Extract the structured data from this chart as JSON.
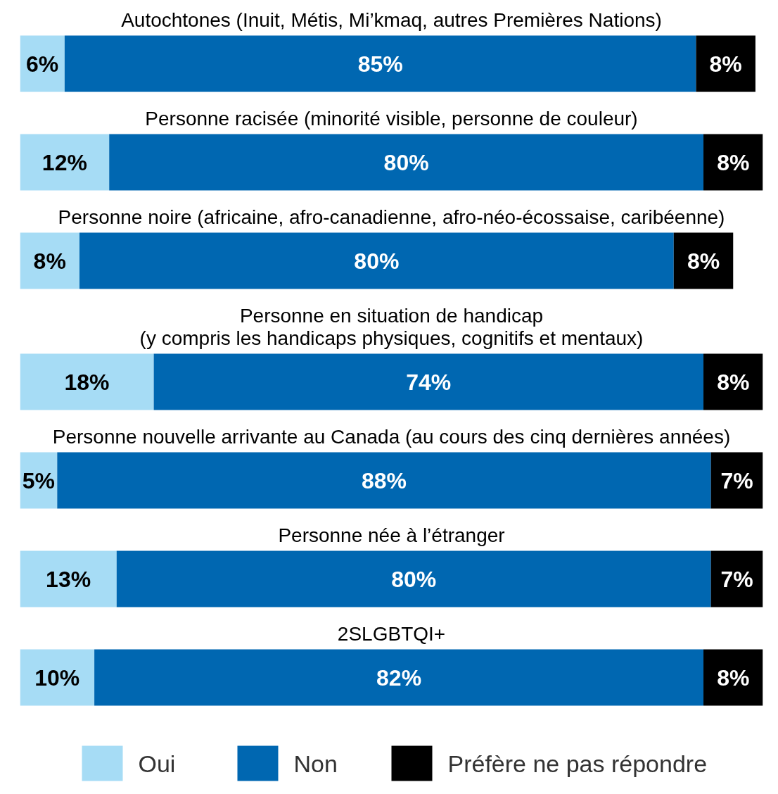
{
  "chart_data": {
    "type": "bar",
    "orientation": "horizontal",
    "stacked": true,
    "legend": "bottom",
    "categories": [
      "Autochtones (Inuit, Métis, Mi’kmaq, autres Premières Nations)",
      "Personne racisée (minorité visible, personne de couleur)",
      "Personne noire (africaine, afro-canadienne, afro-néo-écossaise, caribéenne)",
      "Personne en situation de handicap\n(y compris les handicaps physiques, cognitifs et mentaux)",
      "Personne nouvelle arrivante au Canada (au cours des cinq dernières années)",
      "Personne née à l’étranger",
      "2SLGBTQI+"
    ],
    "series": [
      {
        "name": "Oui",
        "color": "#a6dcf5",
        "values": [
          6,
          12,
          8,
          18,
          5,
          13,
          10
        ],
        "value_labels": [
          "6%",
          "12%",
          "8%",
          "18%",
          "5%",
          "13%",
          "10%"
        ]
      },
      {
        "name": "Non",
        "color": "#0067b1",
        "values": [
          85,
          80,
          80,
          74,
          88,
          80,
          82
        ],
        "value_labels": [
          "85%",
          "80%",
          "80%",
          "74%",
          "88%",
          "80%",
          "82%"
        ]
      },
      {
        "name": "Préfère ne pas répondre",
        "color": "#000000",
        "values": [
          8,
          8,
          8,
          8,
          7,
          7,
          8
        ],
        "value_labels": [
          "8%",
          "8%",
          "8%",
          "8%",
          "7%",
          "7%",
          "8%"
        ]
      }
    ]
  }
}
